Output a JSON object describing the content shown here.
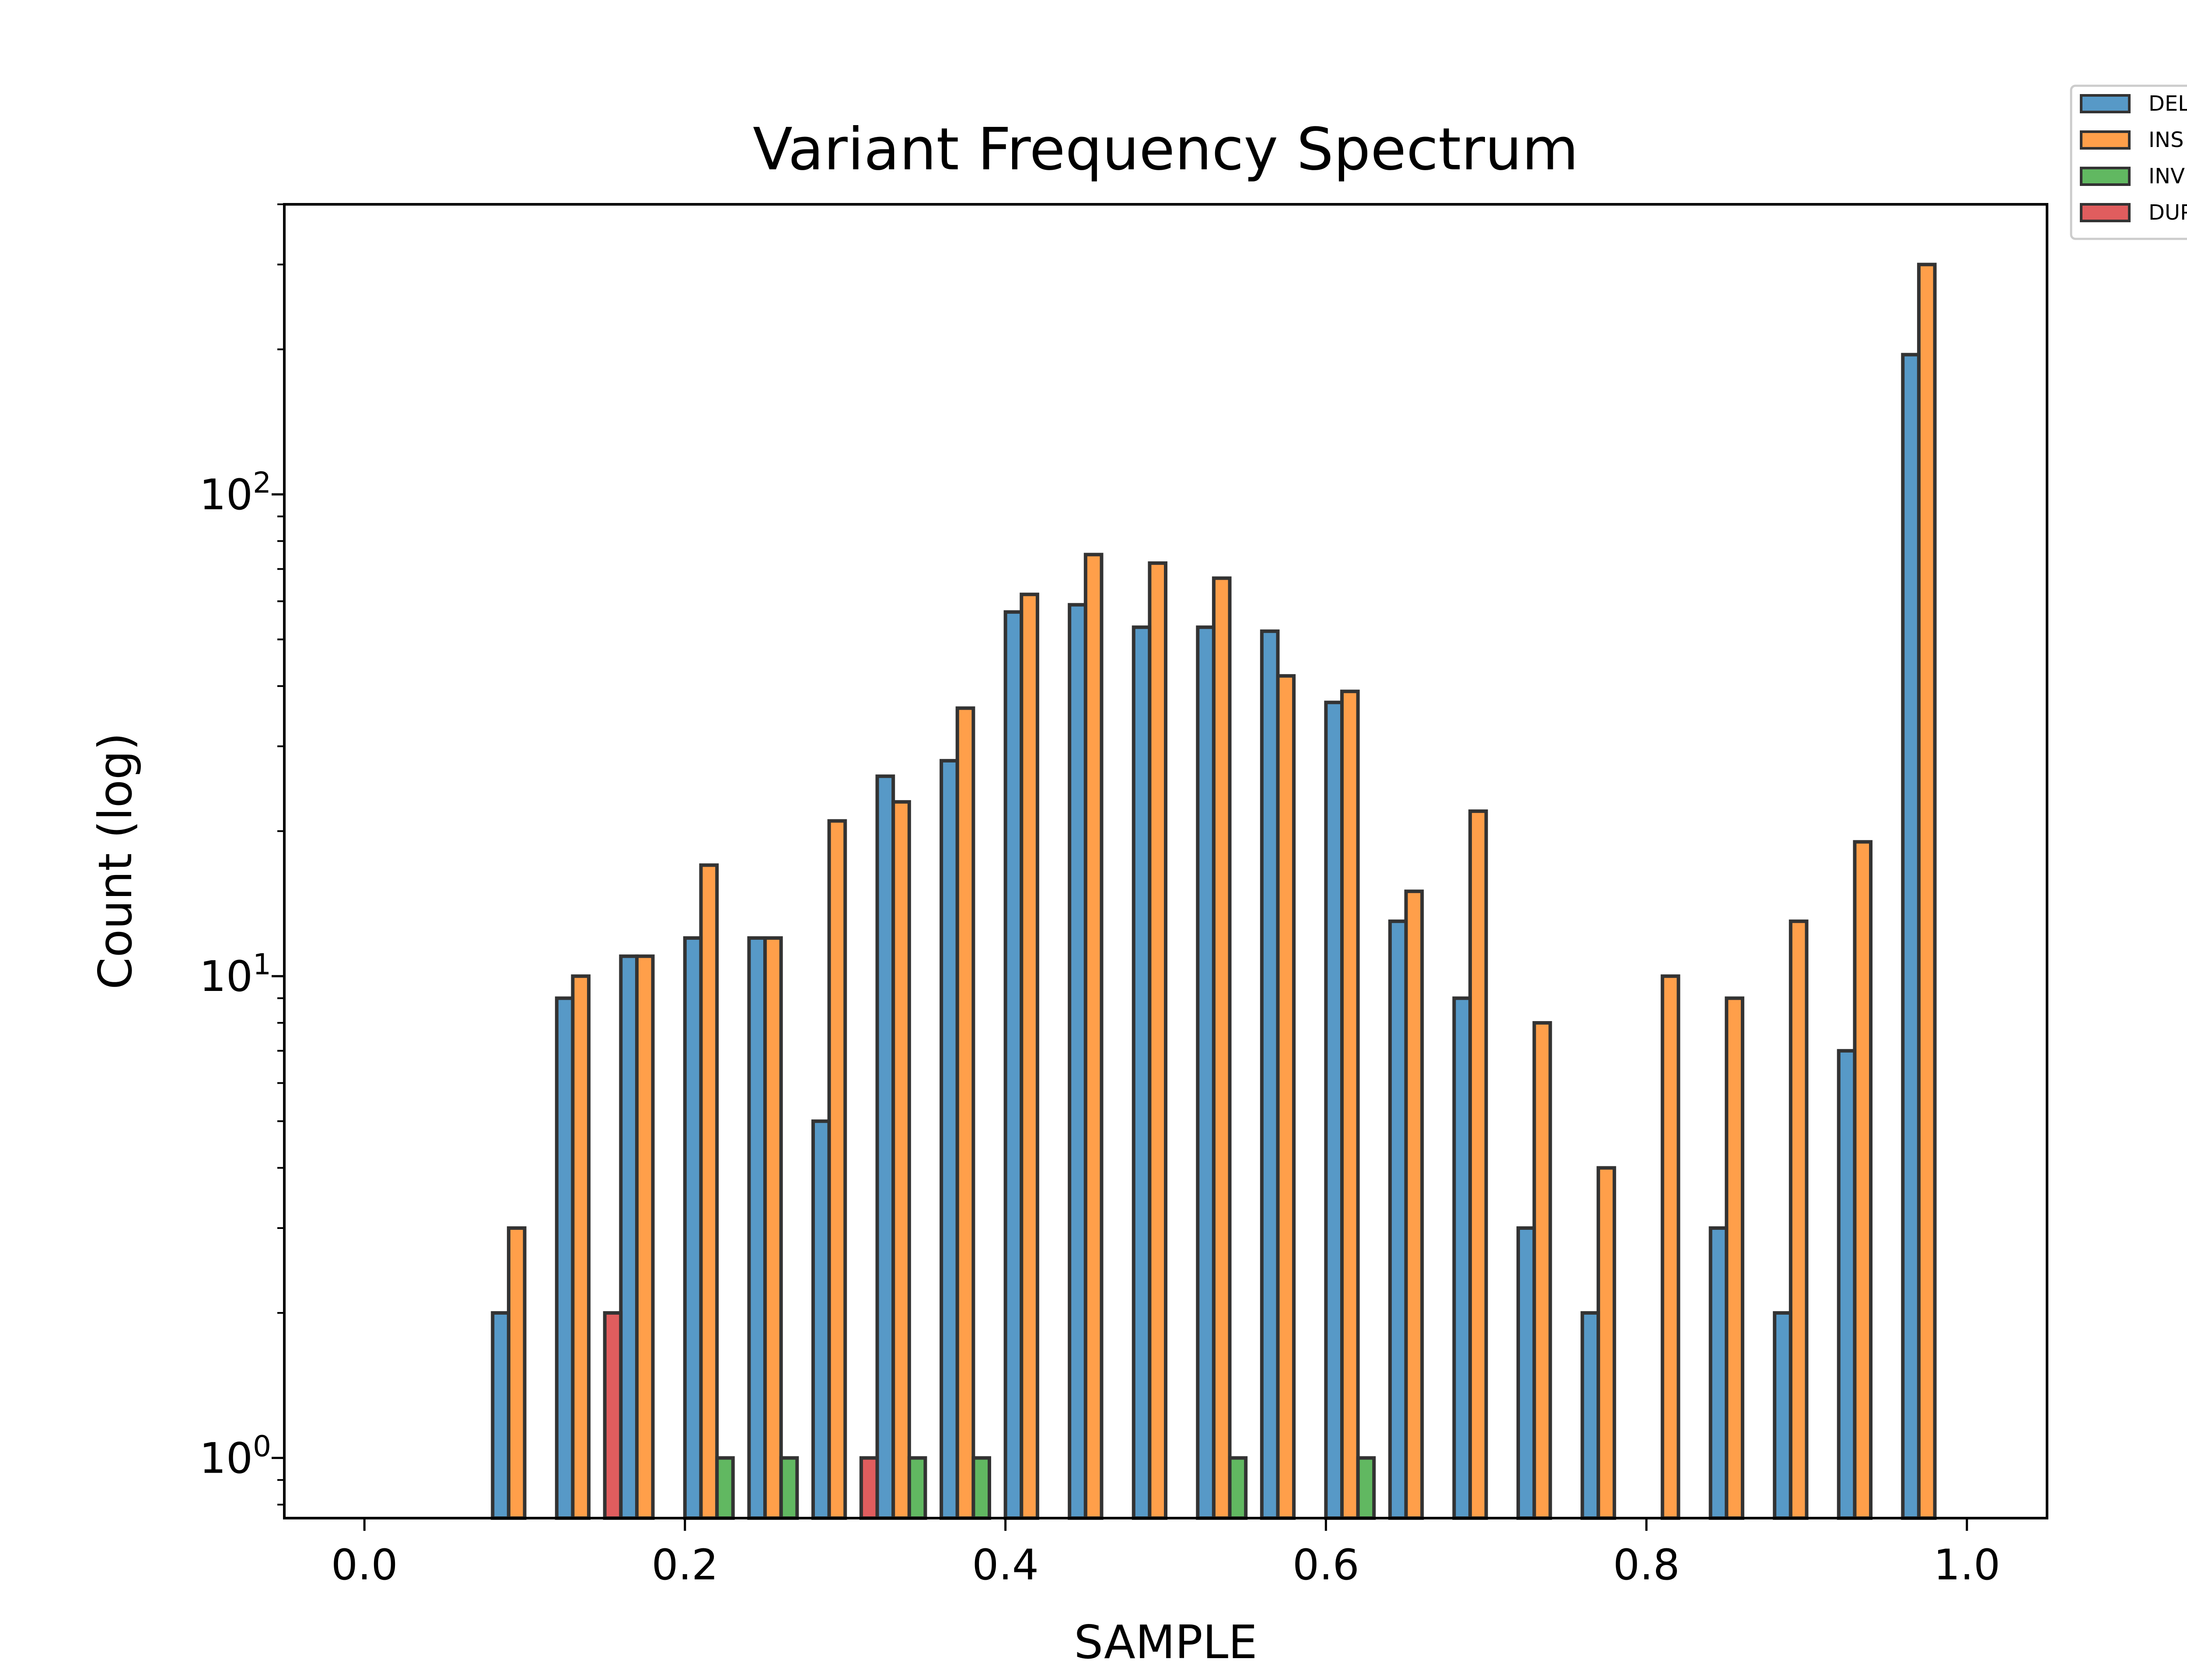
{
  "chart_data": {
    "type": "bar",
    "title": "Variant Frequency Spectrum",
    "xlabel": "SAMPLE",
    "ylabel": "Count (log)",
    "yscale": "log",
    "xlim": [
      -0.05,
      1.05
    ],
    "ylim": [
      0.75,
      400
    ],
    "x_ticks": [
      "0.0",
      "0.2",
      "0.4",
      "0.6",
      "0.8",
      "1.0"
    ],
    "y_ticks": [
      {
        "base": "10",
        "exp": "0",
        "value": 1
      },
      {
        "base": "10",
        "exp": "1",
        "value": 10
      },
      {
        "base": "10",
        "exp": "2",
        "value": 100
      }
    ],
    "grid": false,
    "legend_position": "outside top-right",
    "bin_centers": [
      0.1,
      0.14,
      0.18,
      0.22,
      0.26,
      0.3,
      0.34,
      0.38,
      0.42,
      0.46,
      0.5,
      0.54,
      0.58,
      0.62,
      0.66,
      0.7,
      0.74,
      0.78,
      0.82,
      0.86,
      0.9,
      0.94,
      0.98
    ],
    "series": [
      {
        "name": "DEL",
        "color": "#1f77b4",
        "values": [
          2,
          9,
          11,
          12,
          12,
          5,
          26,
          28,
          57,
          59,
          53,
          53,
          52,
          37,
          13,
          9,
          3,
          2,
          0,
          3,
          2,
          7,
          195
        ]
      },
      {
        "name": "INS",
        "color": "#ff7f0e",
        "values": [
          3,
          10,
          11,
          17,
          12,
          21,
          23,
          36,
          62,
          75,
          72,
          67,
          42,
          39,
          15,
          22,
          8,
          4,
          10,
          9,
          13,
          19,
          300
        ]
      },
      {
        "name": "INV",
        "color": "#2ca02c",
        "values": [
          0,
          0,
          0,
          1,
          1,
          0,
          1,
          1,
          0,
          0,
          0,
          1,
          0,
          1,
          0,
          0,
          0,
          0,
          0,
          0,
          0,
          0,
          0
        ]
      },
      {
        "name": "DUP",
        "color": "#d62728",
        "values": [
          0,
          2,
          0,
          0,
          0,
          1,
          0,
          0,
          0,
          0,
          0,
          0,
          0,
          0,
          0,
          0,
          0,
          0,
          0,
          0,
          0,
          0,
          0
        ]
      }
    ]
  }
}
